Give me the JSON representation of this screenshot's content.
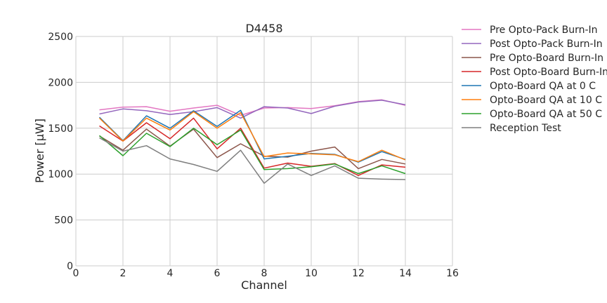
{
  "chart_data": {
    "type": "line",
    "title": "D4458",
    "xlabel": "Channel",
    "ylabel": "Power [μW]",
    "xlim": [
      0,
      16
    ],
    "ylim": [
      0,
      2500
    ],
    "xticks": [
      0,
      2,
      4,
      6,
      8,
      10,
      12,
      14,
      16
    ],
    "yticks": [
      0,
      500,
      1000,
      1500,
      2000,
      2500
    ],
    "grid": true,
    "legend_position": "outside-right",
    "x": [
      1,
      2,
      3,
      4,
      5,
      6,
      7,
      8,
      9,
      10,
      11,
      12,
      13,
      14
    ],
    "series": [
      {
        "name": "Pre Opto-Pack Burn-In",
        "color": "#e377c2",
        "values": [
          1700,
          1730,
          1735,
          1685,
          1720,
          1750,
          1640,
          1720,
          1725,
          1715,
          1745,
          1790,
          1810,
          1750
        ]
      },
      {
        "name": "Post Opto-Pack Burn-In",
        "color": "#9467bd",
        "values": [
          1655,
          1710,
          1690,
          1650,
          1680,
          1725,
          1610,
          1735,
          1720,
          1660,
          1740,
          1785,
          1805,
          1755
        ]
      },
      {
        "name": "Pre Opto-Board Burn-In",
        "color": "#8c564b",
        "values": [
          1415,
          1260,
          1490,
          1305,
          1490,
          1180,
          1330,
          1195,
          1185,
          1250,
          1295,
          1060,
          1160,
          1110
        ]
      },
      {
        "name": "Post Opto-Board Burn-In",
        "color": "#d62728",
        "values": [
          1525,
          1360,
          1560,
          1385,
          1610,
          1275,
          1500,
          1065,
          1120,
          1085,
          1115,
          985,
          1100,
          1075
        ]
      },
      {
        "name": "Opto-Board QA at 0 C",
        "color": "#1f77b4",
        "values": [
          1620,
          1365,
          1635,
          1500,
          1690,
          1520,
          1695,
          1165,
          1195,
          1225,
          1215,
          1130,
          1245,
          1160
        ]
      },
      {
        "name": "Opto-Board QA at 10 C",
        "color": "#ff7f0e",
        "values": [
          1610,
          1360,
          1610,
          1480,
          1680,
          1500,
          1670,
          1190,
          1230,
          1220,
          1210,
          1135,
          1260,
          1155
        ]
      },
      {
        "name": "Opto-Board QA at 50 C",
        "color": "#2ca02c",
        "values": [
          1420,
          1200,
          1445,
          1300,
          1500,
          1320,
          1480,
          1050,
          1060,
          1080,
          1110,
          1005,
          1090,
          1005
        ]
      },
      {
        "name": "Reception Test",
        "color": "#7f7f7f",
        "values": [
          1395,
          1250,
          1310,
          1165,
          1105,
          1030,
          1260,
          900,
          1110,
          985,
          1090,
          955,
          945,
          940
        ]
      }
    ]
  }
}
